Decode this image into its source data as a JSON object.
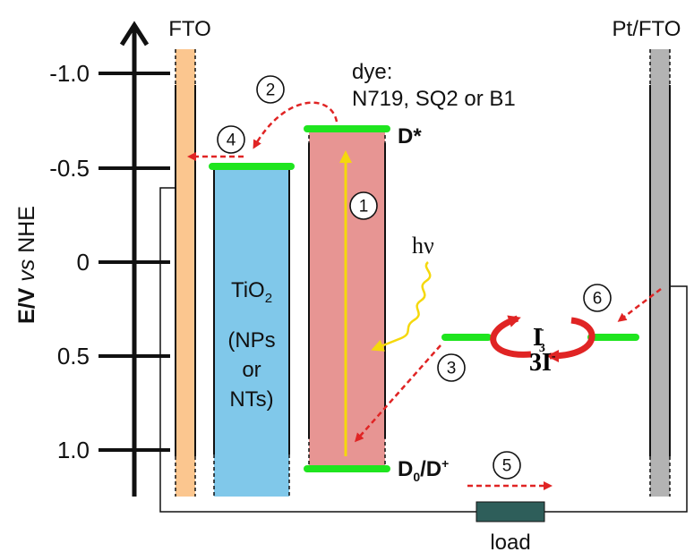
{
  "axis": {
    "label_prefix": "E/V ",
    "label_vs": "vs",
    "label_suffix": " NHE",
    "ticks": [
      "-1.0",
      "-0.5",
      "0",
      "0.5",
      "1.0"
    ]
  },
  "electrodes": {
    "left": "FTO",
    "right": "Pt/FTO"
  },
  "dye": {
    "line1": "dye:",
    "line2": "N719, SQ2 or B1",
    "excited_label": "D*",
    "ground_main": "D",
    "ground_sub": "0",
    "ground_mid": "/D",
    "ground_sup": "+"
  },
  "tio2": {
    "name_main": "TiO",
    "name_sub": "2",
    "line1": "(NPs",
    "line2": "or",
    "line3": "NTs)"
  },
  "redox": {
    "i3_main": "I",
    "i3_sub": "3",
    "i3_sup": "-",
    "i_coef": "3I",
    "i_sup": "-"
  },
  "light": "hν",
  "load": "load",
  "steps": [
    "1",
    "2",
    "3",
    "4",
    "5",
    "6"
  ],
  "colors": {
    "fto": "#fbc68f",
    "tio2": "#80c8ea",
    "dye": "#e79593",
    "pt": "#b3b3b3",
    "level": "#1fe51f",
    "transfer_arrow": "#e02424",
    "excitation_arrow": "#f5d80c",
    "redox_arrow": "#e02424",
    "load": "#2e5e5a"
  }
}
